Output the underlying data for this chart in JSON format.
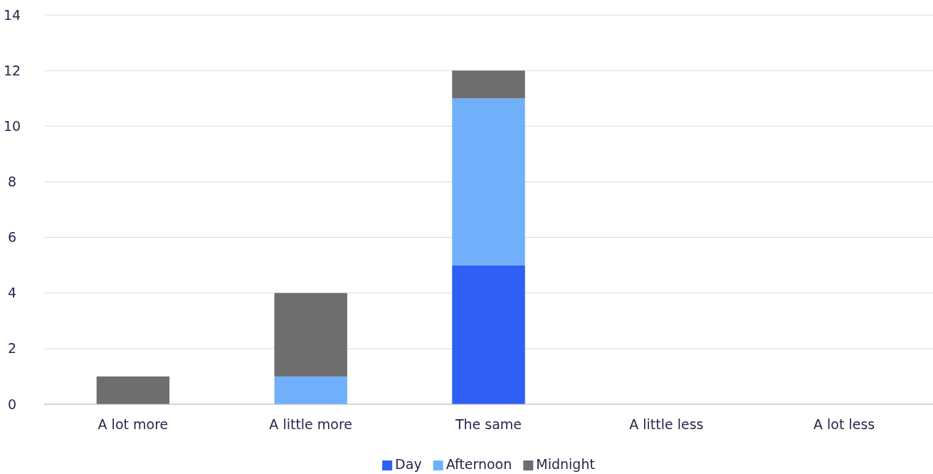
{
  "chart_data": {
    "type": "bar",
    "stacked": true,
    "categories": [
      "A lot more",
      "A little more",
      "The same",
      "A little less",
      "A lot less"
    ],
    "series": [
      {
        "name": "Day",
        "color": "#2f5ff5",
        "values": [
          0,
          0,
          5,
          0,
          0
        ]
      },
      {
        "name": "Afternoon",
        "color": "#70b0fa",
        "values": [
          0,
          1,
          6,
          0,
          0
        ]
      },
      {
        "name": "Midnight",
        "color": "#6e6e6e",
        "values": [
          1,
          3,
          1,
          0,
          0
        ]
      }
    ],
    "ylim": [
      0,
      14
    ],
    "yticks": [
      0,
      2,
      4,
      6,
      8,
      10,
      12,
      14
    ],
    "grid": "y",
    "legend": "bottom"
  }
}
